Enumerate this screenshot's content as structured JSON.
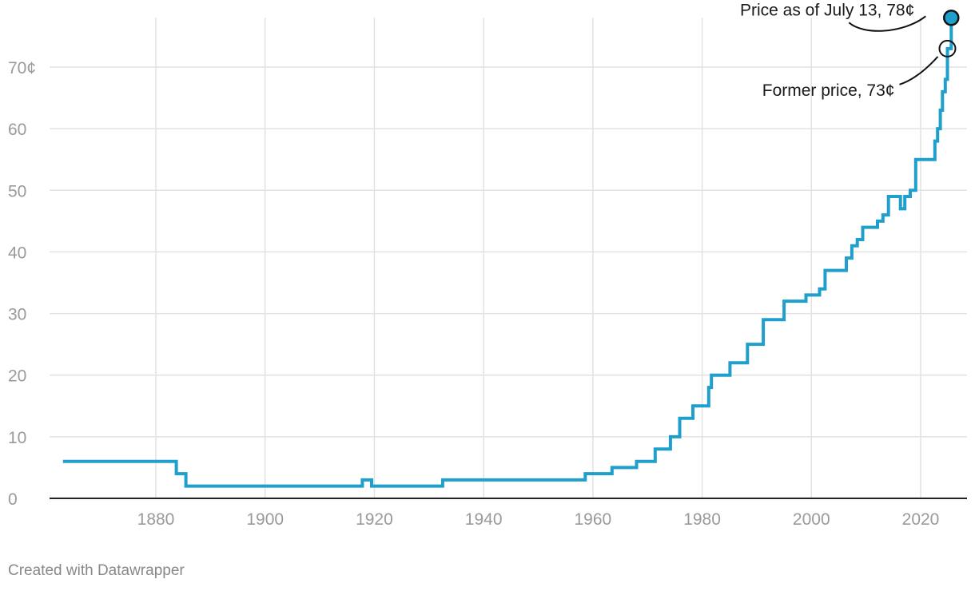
{
  "chart_data": {
    "type": "line",
    "step": true,
    "xlim": [
      1863,
      2026
    ],
    "ylim": [
      0,
      78
    ],
    "x_ticks": [
      1880,
      1900,
      1920,
      1940,
      1960,
      1980,
      2000,
      2020
    ],
    "x_tick_labels": [
      "1880",
      "1900",
      "1920",
      "1940",
      "1960",
      "1980",
      "2000",
      "2020"
    ],
    "y_ticks": [
      0,
      10,
      20,
      30,
      40,
      50,
      60,
      70
    ],
    "y_tick_labels": [
      "0",
      "10",
      "20",
      "30",
      "40",
      "50",
      "60",
      "70¢"
    ],
    "grid": true,
    "line_color": "#1f9fcc",
    "series": [
      {
        "points": [
          [
            1863,
            6
          ],
          [
            1883.75,
            4
          ],
          [
            1885.5,
            2
          ],
          [
            1917.8,
            3
          ],
          [
            1919.5,
            2
          ],
          [
            1932.5,
            3
          ],
          [
            1958.6,
            4
          ],
          [
            1963.5,
            5
          ],
          [
            1968,
            6
          ],
          [
            1971.4,
            8
          ],
          [
            1974.2,
            10
          ],
          [
            1975.9,
            13
          ],
          [
            1978.3,
            15
          ],
          [
            1981.2,
            18
          ],
          [
            1981.7,
            20
          ],
          [
            1985.1,
            22
          ],
          [
            1988.3,
            25
          ],
          [
            1991.2,
            29
          ],
          [
            1995,
            32
          ],
          [
            1999,
            33
          ],
          [
            2001.5,
            34
          ],
          [
            2002.5,
            37
          ],
          [
            2006.4,
            39
          ],
          [
            2007.4,
            41
          ],
          [
            2008.4,
            42
          ],
          [
            2009.4,
            44
          ],
          [
            2012.1,
            45
          ],
          [
            2013.1,
            46
          ],
          [
            2014.1,
            49
          ],
          [
            2016.3,
            47
          ],
          [
            2017.1,
            49
          ],
          [
            2018.1,
            50
          ],
          [
            2019.1,
            55
          ],
          [
            2022.6,
            58
          ],
          [
            2023.1,
            60
          ],
          [
            2023.6,
            63
          ],
          [
            2024.0,
            66
          ],
          [
            2024.5,
            68
          ],
          [
            2024.9,
            73
          ],
          [
            2025.6,
            78
          ]
        ]
      }
    ],
    "annotations": [
      {
        "text": "Price as of July 13, 78¢",
        "x": 2025.6,
        "y": 78,
        "marker": "filled"
      },
      {
        "text": "Former price, 73¢",
        "x": 2024.9,
        "y": 73,
        "marker": "open"
      }
    ]
  },
  "footer": {
    "credit": "Created with Datawrapper"
  }
}
